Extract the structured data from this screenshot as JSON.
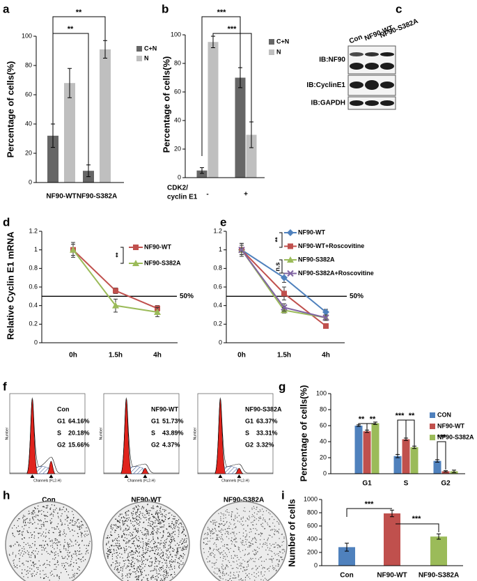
{
  "chart_data": [
    {
      "type": "bar",
      "label": "a",
      "ylabel": "Percentage of cells(%)",
      "categories": [
        "NF90-WT",
        "NF90-S382A"
      ],
      "series": [
        {
          "name": "C+N",
          "color": "#666666",
          "values": [
            32,
            8
          ],
          "errors": [
            8,
            4
          ]
        },
        {
          "name": "N",
          "color": "#bfbfbf",
          "values": [
            68,
            91
          ],
          "errors": [
            10,
            6
          ]
        }
      ],
      "ylim": [
        0,
        100
      ],
      "yticks": [
        0,
        20,
        40,
        60,
        80,
        100
      ],
      "annotations": [
        "**",
        "**"
      ]
    },
    {
      "type": "bar",
      "label": "b",
      "ylabel": "Percentage of cells(%)",
      "xlabel": [
        "CDK2/",
        "cyclin E1"
      ],
      "categories": [
        "-",
        "+"
      ],
      "series": [
        {
          "name": "C+N",
          "color": "#666666",
          "values": [
            5,
            70
          ],
          "errors": [
            2,
            7
          ]
        },
        {
          "name": "N",
          "color": "#bfbfbf",
          "values": [
            95,
            30
          ],
          "errors": [
            4,
            9
          ]
        }
      ],
      "ylim": [
        0,
        100
      ],
      "yticks": [
        0,
        20,
        40,
        60,
        80,
        100
      ],
      "annotations": [
        "***",
        "***"
      ]
    },
    {
      "type": "blot",
      "label": "c",
      "lanes": [
        "Con",
        "NF90-WT",
        "NF90-S382A"
      ],
      "rows": [
        "IB:NF90",
        "IB:CyclinE1",
        "IB:GAPDH"
      ]
    },
    {
      "type": "line",
      "label": "d",
      "ylabel": "Relative Cyclin E1 mRNA",
      "categories": [
        "0h",
        "1.5h",
        "4h"
      ],
      "series": [
        {
          "name": "NF90-WT",
          "color": "#c0504d",
          "marker": "square",
          "values": [
            1,
            0.56,
            0.37
          ],
          "errors": [
            0.08,
            0.03,
            0.03
          ]
        },
        {
          "name": "NF90-S382A",
          "color": "#9bbb59",
          "marker": "triangle",
          "values": [
            1,
            0.4,
            0.33
          ],
          "errors": [
            0.06,
            0.07,
            0.05
          ]
        }
      ],
      "ylim": [
        0,
        1.2
      ],
      "yticks": [
        0,
        0.2,
        0.4,
        0.6,
        0.8,
        1,
        1.2
      ],
      "reference": {
        "value": 0.5,
        "label": "50%"
      },
      "annotations": [
        "**"
      ]
    },
    {
      "type": "line",
      "label": "e",
      "categories": [
        "0h",
        "1.5h",
        "4h"
      ],
      "series": [
        {
          "name": "NF90-WT",
          "color": "#4f81bd",
          "marker": "diamond",
          "values": [
            1,
            0.7,
            0.33
          ],
          "errors": [
            0.07,
            0.05,
            0.03
          ]
        },
        {
          "name": "NF90-WT+Roscovitine",
          "color": "#c0504d",
          "marker": "square",
          "values": [
            1,
            0.53,
            0.18
          ],
          "errors": [
            0.05,
            0.07,
            0.02
          ]
        },
        {
          "name": "NF90-S382A",
          "color": "#9bbb59",
          "marker": "triangle",
          "values": [
            1,
            0.35,
            0.27
          ],
          "errors": [
            0.07,
            0.03,
            0.03
          ]
        },
        {
          "name": "NF90-S382A+Roscovitine",
          "color": "#8064a2",
          "marker": "x",
          "values": [
            1,
            0.38,
            0.27
          ],
          "errors": [
            0.05,
            0.04,
            0.03
          ]
        }
      ],
      "ylim": [
        0,
        1.2
      ],
      "yticks": [
        0,
        0.2,
        0.4,
        0.6,
        0.8,
        1,
        1.2
      ],
      "reference": {
        "value": 0.5,
        "label": "50%"
      },
      "annotations": [
        "**",
        "n.s"
      ]
    },
    {
      "type": "flow",
      "label": "f",
      "xlabel": "Channels (FL2-H)",
      "ylabel": "Number",
      "panels": [
        {
          "title": "Con",
          "phases": [
            "G1",
            "S",
            "G2"
          ],
          "values": [
            64.16,
            20.18,
            15.66
          ],
          "value_labels": [
            "64.16%",
            "20.18%",
            "15.66%"
          ]
        },
        {
          "title": "NF90-WT",
          "phases": [
            "G1",
            "S",
            "G2"
          ],
          "values": [
            51.73,
            43.89,
            4.37
          ],
          "value_labels": [
            "51.73%",
            "43.89%",
            "4.37%"
          ]
        },
        {
          "title": "NF90-S382A",
          "phases": [
            "G1",
            "S",
            "G2"
          ],
          "values": [
            63.37,
            33.31,
            3.32
          ],
          "value_labels": [
            "63.37%",
            "33.31%",
            "3.32%"
          ]
        }
      ]
    },
    {
      "type": "bar",
      "label": "g",
      "ylabel": "Percentage of cells(%)",
      "categories": [
        "G1",
        "S",
        "G2"
      ],
      "series": [
        {
          "name": "CON",
          "color": "#4f81bd",
          "values": [
            60,
            22,
            16
          ],
          "errors": [
            1,
            2,
            1.5
          ]
        },
        {
          "name": "NF90-WT",
          "color": "#c0504d",
          "values": [
            53,
            43,
            3
          ],
          "errors": [
            1.5,
            1.5,
            0.8
          ]
        },
        {
          "name": "NF90-S382A",
          "color": "#9bbb59",
          "values": [
            63,
            33,
            3
          ],
          "errors": [
            1.5,
            1.5,
            1.5
          ]
        }
      ],
      "ylim": [
        0,
        100
      ],
      "yticks": [
        0,
        20,
        40,
        60,
        80,
        100
      ],
      "annotations": [
        "**",
        "**",
        "***",
        "**",
        "***"
      ]
    },
    {
      "type": "image",
      "label": "h",
      "captions": [
        "Con",
        "NF90-WT",
        "NF90-S382A"
      ]
    },
    {
      "type": "bar",
      "label": "i",
      "ylabel": "Number of cells",
      "categories": [
        "Con",
        "NF90-WT",
        "NF90-S382A"
      ],
      "values": [
        280,
        790,
        440
      ],
      "errors": [
        60,
        50,
        40
      ],
      "colors": [
        "#4f81bd",
        "#c0504d",
        "#9bbb59"
      ],
      "ylim": [
        0,
        1000
      ],
      "yticks": [
        0,
        200,
        400,
        600,
        800,
        1000
      ],
      "annotations": [
        "***",
        "***"
      ]
    }
  ]
}
